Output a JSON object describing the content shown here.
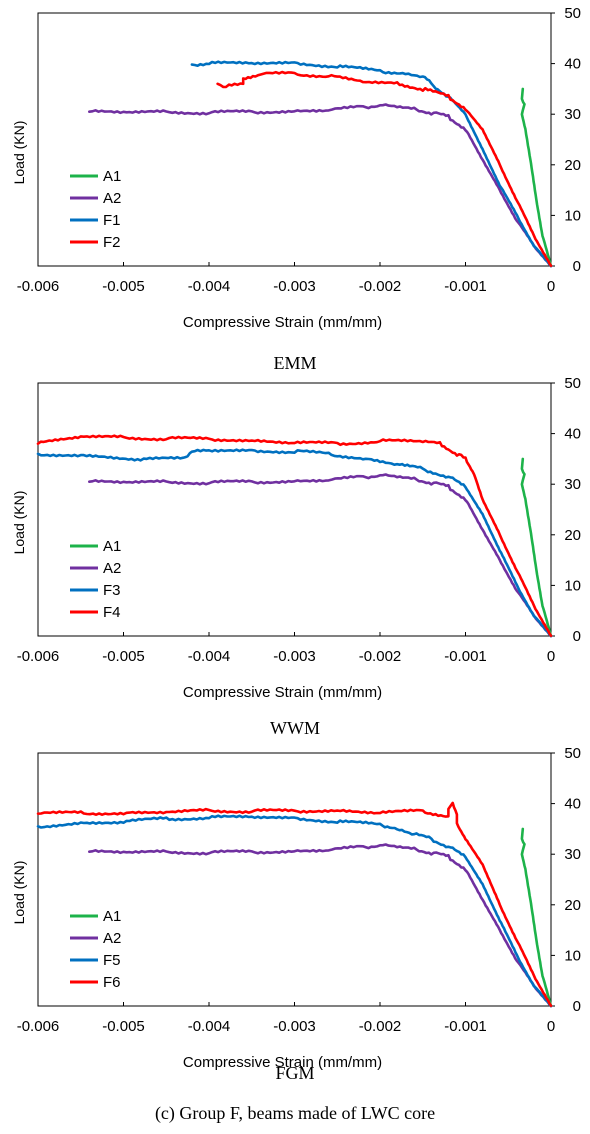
{
  "caption": "(c) Group F, beams made of LWC core",
  "chart_data": [
    {
      "type": "line",
      "title": "EMM",
      "xlabel": "Compressive Strain (mm/mm)",
      "ylabel": "Load (KN)",
      "xlim": [
        -0.006,
        0
      ],
      "ylim": [
        0,
        50
      ],
      "xticks": [
        "-0.006",
        "-0.005",
        "-0.004",
        "-0.003",
        "-0.002",
        "-0.001",
        "0"
      ],
      "yticks": [
        "0",
        "10",
        "20",
        "30",
        "40",
        "50"
      ],
      "y_axis_side": "right",
      "grid": false,
      "legend_position": "left",
      "series": [
        {
          "name": "A1",
          "color": "#1db34a",
          "points": [
            [
              0,
              0
            ],
            [
              -0.0001,
              6
            ],
            [
              -0.00018,
              14
            ],
            [
              -0.00025,
              22
            ],
            [
              -0.0003,
              27
            ],
            [
              -0.00034,
              30
            ],
            [
              -0.00031,
              32
            ],
            [
              -0.00034,
              33
            ],
            [
              -0.00033,
              35
            ]
          ]
        },
        {
          "name": "A2",
          "color": "#7030a0",
          "points": [
            [
              0,
              0
            ],
            [
              -0.0002,
              4
            ],
            [
              -0.0004,
              9
            ],
            [
              -0.0006,
              15
            ],
            [
              -0.0008,
              21
            ],
            [
              -0.001,
              27
            ],
            [
              -0.0012,
              29.5
            ],
            [
              -0.0014,
              30.3
            ],
            [
              -0.0016,
              31
            ],
            [
              -0.0018,
              31.5
            ],
            [
              -0.002,
              31.8
            ],
            [
              -0.0022,
              31.4
            ],
            [
              -0.0026,
              30.9
            ],
            [
              -0.003,
              30.5
            ],
            [
              -0.0035,
              30.5
            ],
            [
              -0.004,
              30.3
            ],
            [
              -0.0045,
              30.4
            ],
            [
              -0.005,
              30.5
            ],
            [
              -0.0054,
              30.5
            ]
          ]
        },
        {
          "name": "F1",
          "color": "#0070c0",
          "points": [
            [
              0,
              0
            ],
            [
              -0.0002,
              4
            ],
            [
              -0.0004,
              10
            ],
            [
              -0.0006,
              16
            ],
            [
              -0.0008,
              23
            ],
            [
              -0.001,
              30
            ],
            [
              -0.0012,
              33.5
            ],
            [
              -0.0014,
              36
            ],
            [
              -0.0015,
              37.5
            ],
            [
              -0.0017,
              38
            ],
            [
              -0.002,
              38.5
            ],
            [
              -0.0025,
              39.5
            ],
            [
              -0.003,
              40
            ],
            [
              -0.0035,
              40.2
            ],
            [
              -0.004,
              40
            ],
            [
              -0.0042,
              39.8
            ]
          ]
        },
        {
          "name": "F2",
          "color": "#ff0000",
          "points": [
            [
              0,
              0
            ],
            [
              -0.0002,
              6
            ],
            [
              -0.0004,
              13
            ],
            [
              -0.0006,
              20
            ],
            [
              -0.0008,
              27
            ],
            [
              -0.001,
              31
            ],
            [
              -0.0012,
              33.5
            ],
            [
              -0.0015,
              35
            ],
            [
              -0.0018,
              36
            ],
            [
              -0.0022,
              36.5
            ],
            [
              -0.0026,
              37.5
            ],
            [
              -0.003,
              38
            ],
            [
              -0.0034,
              38
            ],
            [
              -0.0036,
              37
            ],
            [
              -0.0036,
              36
            ],
            [
              -0.0038,
              35.5
            ],
            [
              -0.0039,
              36
            ]
          ]
        }
      ]
    },
    {
      "type": "line",
      "title": "WWM",
      "xlabel": "Compressive Strain (mm/mm)",
      "ylabel": "Load (KN)",
      "xlim": [
        -0.006,
        0
      ],
      "ylim": [
        0,
        50
      ],
      "xticks": [
        "-0.006",
        "-0.005",
        "-0.004",
        "-0.003",
        "-0.002",
        "-0.001",
        "0"
      ],
      "yticks": [
        "0",
        "10",
        "20",
        "30",
        "40",
        "50"
      ],
      "y_axis_side": "right",
      "grid": false,
      "legend_position": "left",
      "series": [
        {
          "name": "A1",
          "color": "#1db34a",
          "points": [
            [
              0,
              0
            ],
            [
              -0.0001,
              6
            ],
            [
              -0.00018,
              14
            ],
            [
              -0.00025,
              22
            ],
            [
              -0.0003,
              27
            ],
            [
              -0.00034,
              30
            ],
            [
              -0.00031,
              32
            ],
            [
              -0.00034,
              33
            ],
            [
              -0.00033,
              35
            ]
          ]
        },
        {
          "name": "A2",
          "color": "#7030a0",
          "points": [
            [
              0,
              0
            ],
            [
              -0.0002,
              4
            ],
            [
              -0.0004,
              9
            ],
            [
              -0.0006,
              15
            ],
            [
              -0.0008,
              21
            ],
            [
              -0.001,
              27
            ],
            [
              -0.0012,
              29.5
            ],
            [
              -0.0014,
              30.3
            ],
            [
              -0.0016,
              31
            ],
            [
              -0.0018,
              31.5
            ],
            [
              -0.002,
              31.8
            ],
            [
              -0.0022,
              31.4
            ],
            [
              -0.0026,
              30.9
            ],
            [
              -0.003,
              30.5
            ],
            [
              -0.0035,
              30.5
            ],
            [
              -0.004,
              30.3
            ],
            [
              -0.0045,
              30.4
            ],
            [
              -0.005,
              30.5
            ],
            [
              -0.0054,
              30.5
            ]
          ]
        },
        {
          "name": "F3",
          "color": "#0070c0",
          "points": [
            [
              0,
              0
            ],
            [
              -0.0002,
              4
            ],
            [
              -0.0004,
              10
            ],
            [
              -0.0006,
              17
            ],
            [
              -0.0008,
              24
            ],
            [
              -0.001,
              29.5
            ],
            [
              -0.0012,
              31.5
            ],
            [
              -0.0015,
              33
            ],
            [
              -0.0018,
              34
            ],
            [
              -0.0022,
              35
            ],
            [
              -0.0026,
              36
            ],
            [
              -0.003,
              36.5
            ],
            [
              -0.0035,
              36.5
            ],
            [
              -0.004,
              36.8
            ],
            [
              -0.0042,
              36.5
            ],
            [
              -0.0043,
              35
            ],
            [
              -0.0048,
              35
            ],
            [
              -0.0055,
              35.5
            ],
            [
              -0.006,
              36
            ]
          ]
        },
        {
          "name": "F4",
          "color": "#ff0000",
          "points": [
            [
              0,
              0
            ],
            [
              -0.0002,
              6
            ],
            [
              -0.0004,
              13
            ],
            [
              -0.0006,
              20
            ],
            [
              -0.0008,
              27
            ],
            [
              -0.0009,
              32
            ],
            [
              -0.001,
              35
            ],
            [
              -0.0011,
              36
            ],
            [
              -0.0013,
              38
            ],
            [
              -0.0015,
              38.5
            ],
            [
              -0.002,
              38.5
            ],
            [
              -0.0025,
              38
            ],
            [
              -0.003,
              38.3
            ],
            [
              -0.0035,
              38.5
            ],
            [
              -0.004,
              39
            ],
            [
              -0.0045,
              39
            ],
            [
              -0.005,
              39.2
            ],
            [
              -0.0055,
              39.5
            ],
            [
              -0.006,
              38
            ]
          ]
        }
      ]
    },
    {
      "type": "line",
      "title": "FGM",
      "xlabel": "Compressive Strain (mm/mm)",
      "ylabel": "Load (KN)",
      "xlim": [
        -0.006,
        0
      ],
      "ylim": [
        0,
        50
      ],
      "xticks": [
        "-0.006",
        "-0.005",
        "-0.004",
        "-0.003",
        "-0.002",
        "-0.001",
        "0"
      ],
      "yticks": [
        "0",
        "10",
        "20",
        "30",
        "40",
        "50"
      ],
      "y_axis_side": "right",
      "grid": false,
      "legend_position": "left",
      "series": [
        {
          "name": "A1",
          "color": "#1db34a",
          "points": [
            [
              0,
              0
            ],
            [
              -0.0001,
              6
            ],
            [
              -0.00018,
              14
            ],
            [
              -0.00025,
              22
            ],
            [
              -0.0003,
              27
            ],
            [
              -0.00034,
              30
            ],
            [
              -0.00031,
              32
            ],
            [
              -0.00034,
              33
            ],
            [
              -0.00033,
              35
            ]
          ]
        },
        {
          "name": "A2",
          "color": "#7030a0",
          "points": [
            [
              0,
              0
            ],
            [
              -0.0002,
              4
            ],
            [
              -0.0004,
              9
            ],
            [
              -0.0006,
              15
            ],
            [
              -0.0008,
              21
            ],
            [
              -0.001,
              27
            ],
            [
              -0.0012,
              29.5
            ],
            [
              -0.0014,
              30.3
            ],
            [
              -0.0016,
              31
            ],
            [
              -0.0018,
              31.5
            ],
            [
              -0.002,
              31.8
            ],
            [
              -0.0022,
              31.4
            ],
            [
              -0.0026,
              30.9
            ],
            [
              -0.003,
              30.5
            ],
            [
              -0.0035,
              30.5
            ],
            [
              -0.004,
              30.3
            ],
            [
              -0.0045,
              30.4
            ],
            [
              -0.005,
              30.5
            ],
            [
              -0.0054,
              30.5
            ]
          ]
        },
        {
          "name": "F5",
          "color": "#0070c0",
          "points": [
            [
              0,
              0
            ],
            [
              -0.0002,
              4
            ],
            [
              -0.0004,
              10
            ],
            [
              -0.0006,
              17
            ],
            [
              -0.0008,
              24
            ],
            [
              -0.001,
              29.5
            ],
            [
              -0.0012,
              31.5
            ],
            [
              -0.0014,
              33
            ],
            [
              -0.0016,
              34
            ],
            [
              -0.0018,
              35
            ],
            [
              -0.002,
              35.8
            ],
            [
              -0.0025,
              36.5
            ],
            [
              -0.003,
              37
            ],
            [
              -0.0035,
              37.5
            ],
            [
              -0.004,
              37.2
            ],
            [
              -0.0045,
              37
            ],
            [
              -0.005,
              36.5
            ],
            [
              -0.0055,
              36
            ],
            [
              -0.006,
              35.5
            ]
          ]
        },
        {
          "name": "F6",
          "color": "#ff0000",
          "points": [
            [
              0,
              0
            ],
            [
              -0.0002,
              6
            ],
            [
              -0.0004,
              13
            ],
            [
              -0.0006,
              20
            ],
            [
              -0.0008,
              28
            ],
            [
              -0.001,
              33
            ],
            [
              -0.0011,
              36
            ],
            [
              -0.0011,
              38
            ],
            [
              -0.00115,
              40
            ],
            [
              -0.0012,
              39
            ],
            [
              -0.0012,
              37.5
            ],
            [
              -0.0015,
              38.5
            ],
            [
              -0.002,
              38.3
            ],
            [
              -0.0025,
              38.5
            ],
            [
              -0.003,
              38.6
            ],
            [
              -0.0035,
              38.5
            ],
            [
              -0.004,
              38.6
            ],
            [
              -0.0045,
              38.4
            ],
            [
              -0.005,
              38
            ],
            [
              -0.0055,
              38.2
            ],
            [
              -0.006,
              38
            ]
          ]
        }
      ]
    }
  ]
}
